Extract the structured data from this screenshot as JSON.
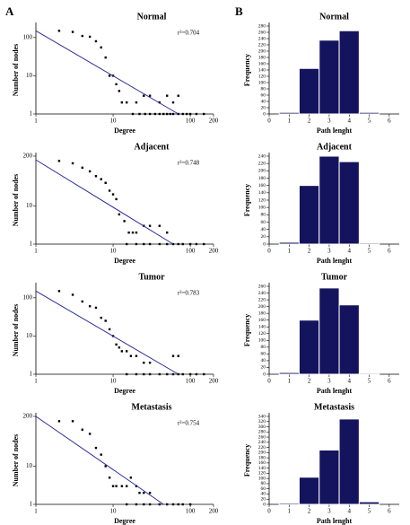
{
  "panel_labels": [
    "A",
    "B"
  ],
  "chart_data": [
    {
      "type": "scatter",
      "title": "Normal",
      "xlabel": "Degree",
      "ylabel": "Number of nodes",
      "annotation": "r²=0.704",
      "log_scale": true,
      "color": "#000000",
      "line_color": "#2b2b9a",
      "x": [
        2,
        3,
        4,
        5,
        6,
        7,
        8,
        9,
        10,
        11,
        12,
        13,
        15,
        20,
        25,
        30,
        40,
        50,
        60,
        70,
        18,
        22,
        26,
        30,
        35,
        40,
        45,
        50,
        55,
        60,
        70,
        80,
        90,
        100,
        120,
        150
      ],
      "y": [
        150,
        140,
        110,
        105,
        80,
        55,
        30,
        10,
        10,
        6,
        4,
        2,
        2,
        2,
        3,
        3,
        2,
        3,
        2,
        3,
        1,
        1,
        1,
        1,
        1,
        1,
        1,
        1,
        1,
        1,
        1,
        1,
        1,
        1,
        1,
        1
      ],
      "fit_line": {
        "x": [
          1,
          70
        ],
        "y": [
          150,
          1
        ]
      },
      "xlim": [
        1,
        200
      ],
      "ylim": [
        1,
        200
      ],
      "xticks": [
        1,
        10,
        100,
        200
      ],
      "yticks": [
        1,
        10,
        100
      ]
    },
    {
      "type": "histogram",
      "title": "Normal",
      "xlabel": "Path lenght",
      "ylabel": "Frequency",
      "color": "#14145e",
      "bins": [
        0.5,
        1.5,
        2.5,
        3.5,
        4.5,
        5.5
      ],
      "counts": [
        5,
        145,
        235,
        265,
        5
      ],
      "xlim": [
        0,
        6.5
      ],
      "ylim": [
        0,
        280
      ],
      "xticks": [
        0,
        1,
        2,
        3,
        4,
        5,
        6
      ],
      "yticks": [
        0,
        20,
        40,
        60,
        80,
        100,
        120,
        140,
        160,
        180,
        200,
        220,
        240,
        260,
        280
      ]
    },
    {
      "type": "scatter",
      "title": "Adjacent",
      "xlabel": "Degree",
      "ylabel": "Number of nodes",
      "annotation": "r²=0.748",
      "log_scale": true,
      "color": "#000000",
      "line_color": "#2b2b9a",
      "x": [
        2,
        3,
        4,
        5,
        6,
        7,
        8,
        9,
        10,
        11,
        12,
        14,
        16,
        18,
        20,
        25,
        30,
        40,
        50,
        15,
        20,
        25,
        30,
        40,
        50,
        60,
        70,
        80,
        100,
        120,
        150
      ],
      "y": [
        150,
        130,
        100,
        80,
        60,
        50,
        40,
        25,
        20,
        15,
        6,
        4,
        2,
        2,
        2,
        3,
        3,
        3,
        2,
        1,
        1,
        1,
        1,
        1,
        1,
        1,
        1,
        1,
        1,
        1,
        1
      ],
      "fit_line": {
        "x": [
          1,
          60
        ],
        "y": [
          160,
          1
        ]
      },
      "xlim": [
        1,
        200
      ],
      "ylim": [
        1,
        200
      ],
      "xticks": [
        1,
        10,
        100,
        200
      ],
      "yticks": [
        1,
        10,
        200
      ]
    },
    {
      "type": "histogram",
      "title": "Adjacent",
      "xlabel": "Path lenght",
      "ylabel": "Frequency",
      "color": "#14145e",
      "bins": [
        0.5,
        1.5,
        2.5,
        3.5,
        4.5,
        5.5
      ],
      "counts": [
        5,
        160,
        240,
        225,
        3
      ],
      "xlim": [
        0,
        6.5
      ],
      "ylim": [
        0,
        240
      ],
      "xticks": [
        0,
        1,
        2,
        3,
        4,
        5,
        6
      ],
      "yticks": [
        0,
        20,
        40,
        60,
        80,
        100,
        120,
        140,
        160,
        180,
        200,
        220,
        240
      ]
    },
    {
      "type": "scatter",
      "title": "Tumor",
      "xlabel": "Degree",
      "ylabel": "Number of nodes",
      "annotation": "r²=0.783",
      "log_scale": true,
      "color": "#000000",
      "line_color": "#2b2b9a",
      "x": [
        2,
        3,
        4,
        5,
        6,
        7,
        8,
        9,
        10,
        11,
        12,
        13,
        15,
        17,
        20,
        25,
        30,
        60,
        70,
        15,
        20,
        25,
        30,
        40,
        50,
        60,
        70,
        80,
        100,
        120,
        150
      ],
      "y": [
        150,
        120,
        80,
        60,
        55,
        30,
        25,
        15,
        10,
        6,
        5,
        4,
        4,
        3,
        3,
        2,
        2,
        3,
        3,
        1,
        1,
        1,
        1,
        1,
        1,
        1,
        1,
        1,
        1,
        1,
        1
      ],
      "fit_line": {
        "x": [
          1,
          70
        ],
        "y": [
          150,
          1
        ]
      },
      "xlim": [
        1,
        200
      ],
      "ylim": [
        1,
        200
      ],
      "xticks": [
        1,
        10,
        100,
        200
      ],
      "yticks": [
        1,
        10,
        100
      ]
    },
    {
      "type": "histogram",
      "title": "Tumor",
      "xlabel": "Path lenght",
      "ylabel": "Frequency",
      "color": "#14145e",
      "bins": [
        0.5,
        1.5,
        2.5,
        3.5,
        4.5,
        5.5
      ],
      "counts": [
        5,
        160,
        255,
        205,
        3
      ],
      "xlim": [
        0,
        6.5
      ],
      "ylim": [
        0,
        260
      ],
      "xticks": [
        0,
        1,
        2,
        3,
        4,
        5,
        6
      ],
      "yticks": [
        0,
        20,
        40,
        60,
        80,
        100,
        120,
        140,
        160,
        180,
        200,
        220,
        240,
        260
      ]
    },
    {
      "type": "scatter",
      "title": "Metastasis",
      "xlabel": "Degree",
      "ylabel": "Number of nodes",
      "annotation": "r²=0.754",
      "log_scale": true,
      "color": "#000000",
      "line_color": "#2b2b9a",
      "x": [
        2,
        3,
        4,
        5,
        6,
        7,
        8,
        9,
        10,
        11,
        13,
        15,
        17,
        20,
        22,
        25,
        30,
        15,
        20,
        25,
        30,
        40,
        50,
        60,
        70,
        80,
        100
      ],
      "y": [
        150,
        150,
        90,
        70,
        30,
        20,
        10,
        5,
        3,
        3,
        3,
        3,
        5,
        3,
        2,
        2,
        2,
        1,
        1,
        1,
        1,
        1,
        1,
        1,
        1,
        1,
        1
      ],
      "fit_line": {
        "x": [
          1,
          45
        ],
        "y": [
          200,
          1
        ]
      },
      "xlim": [
        1,
        200
      ],
      "ylim": [
        1,
        200
      ],
      "xticks": [
        1,
        10,
        100,
        200
      ],
      "yticks": [
        1,
        10,
        200
      ]
    },
    {
      "type": "histogram",
      "title": "Metastasis",
      "xlabel": "Path lenght",
      "ylabel": "Frequency",
      "color": "#14145e",
      "bins": [
        0.5,
        1.5,
        2.5,
        3.5,
        4.5,
        5.5
      ],
      "counts": [
        5,
        105,
        210,
        330,
        10
      ],
      "xlim": [
        0,
        6.5
      ],
      "ylim": [
        0,
        340
      ],
      "xticks": [
        0,
        1,
        2,
        3,
        4,
        5,
        6
      ],
      "yticks": [
        0,
        20,
        40,
        60,
        80,
        100,
        120,
        140,
        160,
        180,
        200,
        220,
        240,
        260,
        280,
        300,
        320,
        340
      ]
    }
  ]
}
